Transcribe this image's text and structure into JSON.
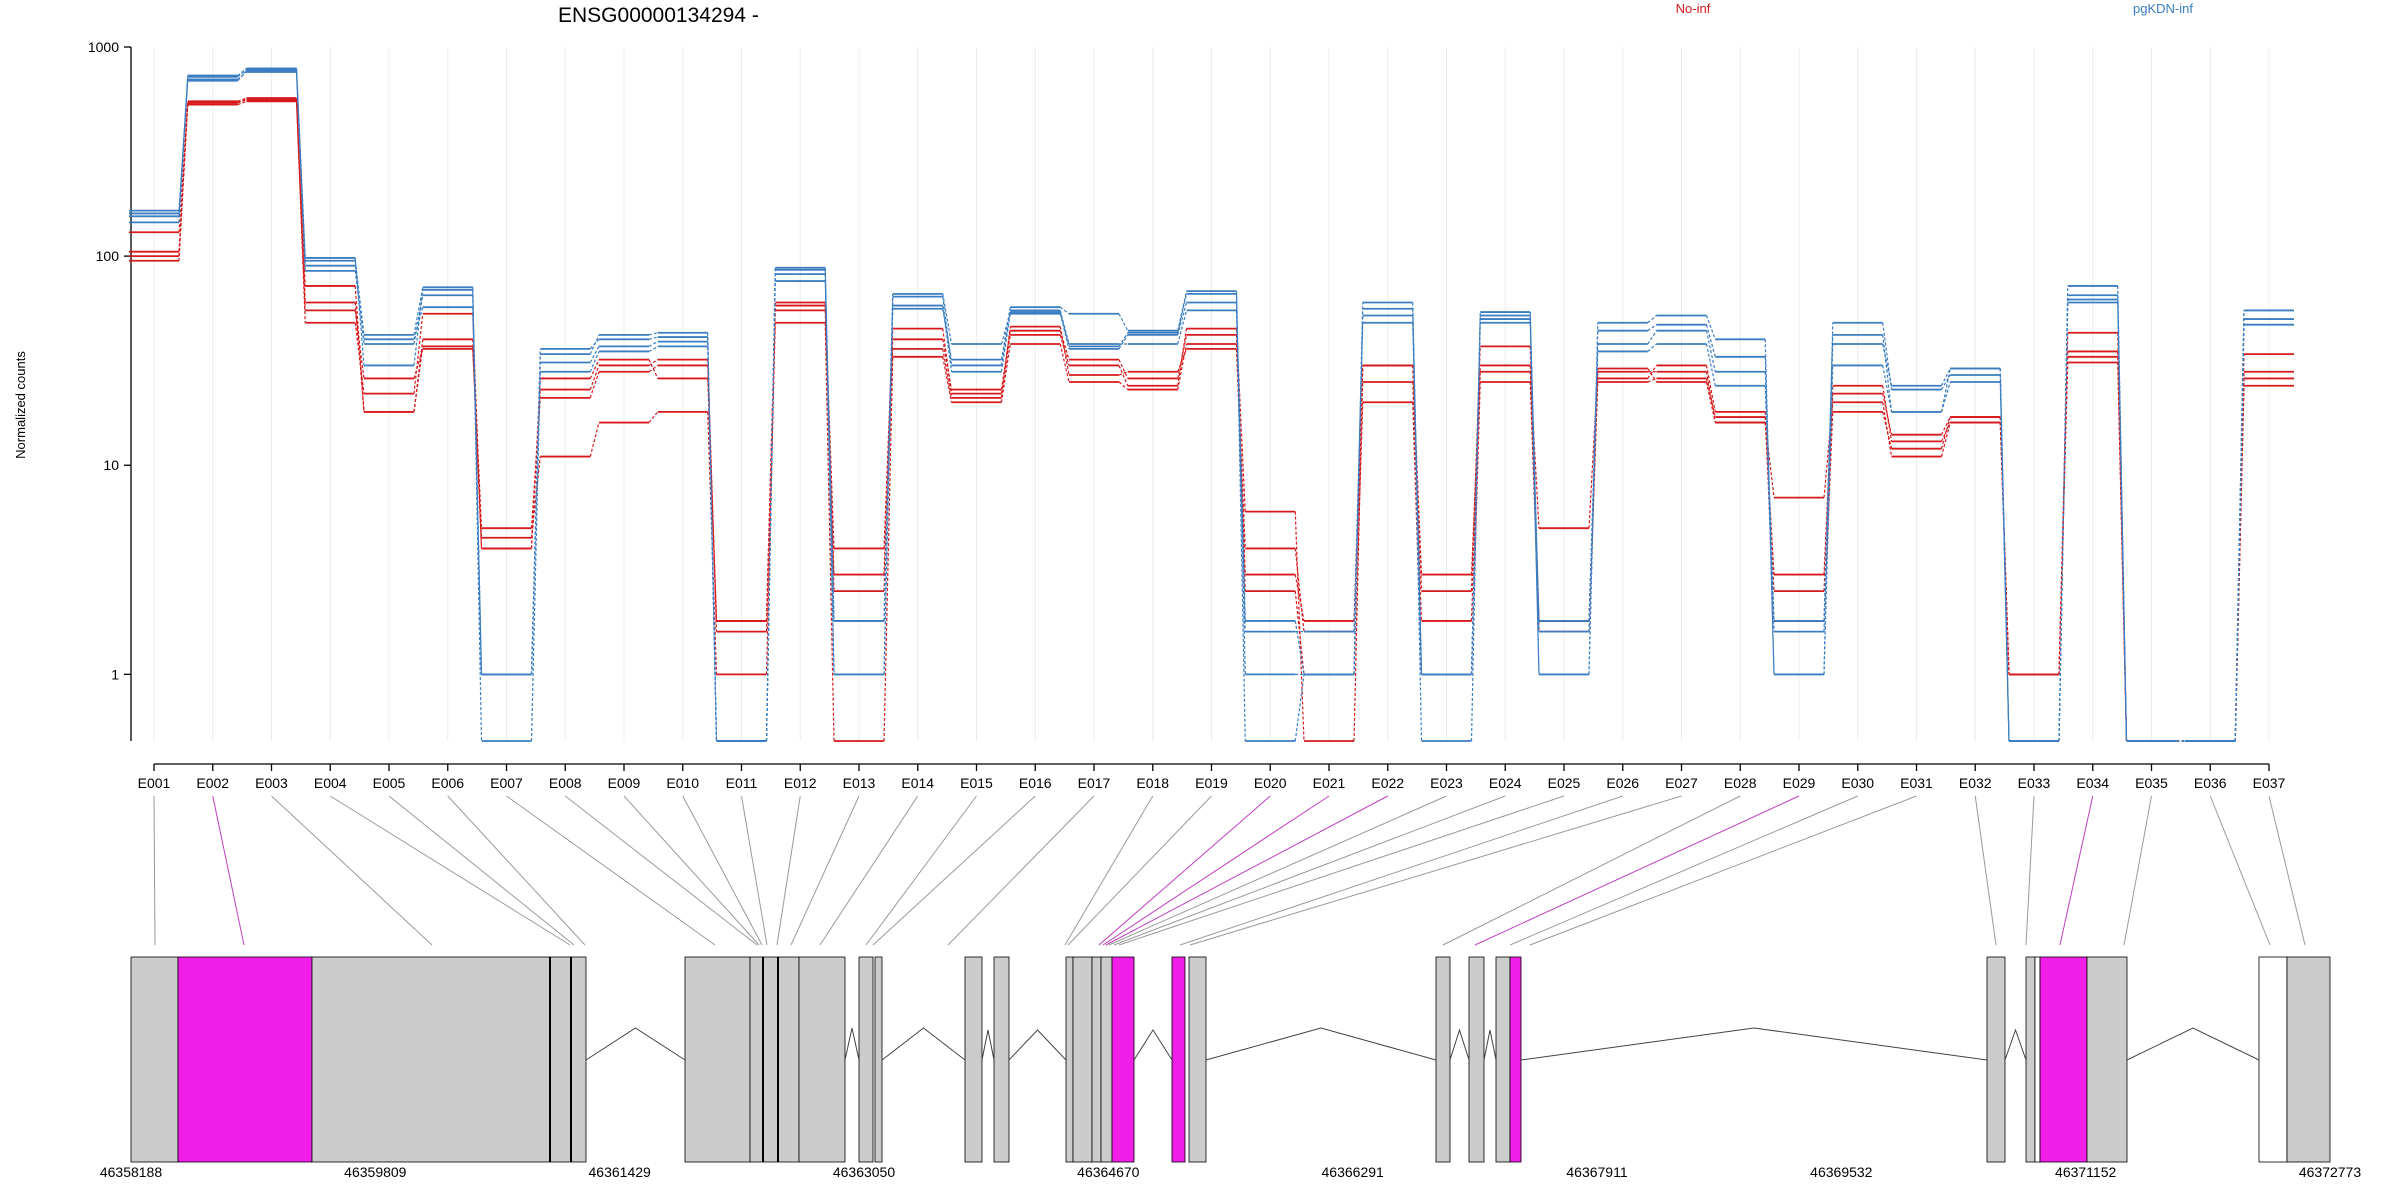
{
  "chart_data": {
    "type": "line",
    "title": "ENSG00000134294 -",
    "xlabel": "",
    "ylabel": "Normalized counts",
    "y_scale": "log",
    "ylim": [
      0.48,
      1000
    ],
    "y_ticks": [
      "1",
      "10",
      "100",
      "1000"
    ],
    "y_tick_values": [
      1,
      10,
      100,
      1000
    ],
    "grid": "vertical",
    "legend": [
      {
        "name": "No-inf",
        "color": "#d7191c"
      },
      {
        "name": "pgKDN-inf",
        "color": "#3a7dc1"
      }
    ],
    "categories": [
      "E001",
      "E002",
      "E003",
      "E004",
      "E005",
      "E006",
      "E007",
      "E008",
      "E009",
      "E010",
      "E011",
      "E012",
      "E013",
      "E014",
      "E015",
      "E016",
      "E017",
      "E018",
      "E019",
      "E020",
      "E021",
      "E022",
      "E023",
      "E024",
      "E025",
      "E026",
      "E027",
      "E028",
      "E029",
      "E030",
      "E031",
      "E032",
      "E033",
      "E034",
      "E035",
      "E036",
      "E037"
    ],
    "series": [
      {
        "group": "No-inf",
        "color": "#d7191c",
        "values": [
          105,
          540,
          560,
          72,
          18,
          40,
          5,
          21,
          28,
          30,
          1.8,
          58,
          4,
          45,
          22,
          42,
          30,
          24,
          45,
          6,
          0.48,
          30,
          3,
          28,
          5,
          28,
          28,
          16,
          7,
          20,
          11,
          16,
          1,
          35,
          0.48,
          0.48,
          34
        ]
      },
      {
        "group": "No-inf",
        "color": "#d7191c",
        "values": [
          95,
          550,
          570,
          60,
          18,
          37,
          4,
          23,
          30,
          32,
          1.6,
          55,
          3,
          40,
          23,
          44,
          32,
          26,
          42,
          3,
          1.8,
          25,
          1.8,
          30,
          1.8,
          26,
          30,
          18,
          1.8,
          18,
          12,
          17,
          1,
          33,
          0.48,
          0.48,
          28
        ]
      },
      {
        "group": "No-inf",
        "color": "#d7191c",
        "values": [
          130,
          545,
          565,
          55,
          26,
          36,
          4.5,
          11,
          16,
          18,
          1,
          48,
          0.48,
          33,
          20,
          38,
          25,
          23,
          38,
          2.5,
          1,
          20,
          1,
          25,
          1.6,
          25,
          26,
          17,
          2.5,
          22,
          14,
          17,
          1,
          31,
          0.48,
          0.48,
          24
        ]
      },
      {
        "group": "No-inf",
        "color": "#d7191c",
        "values": [
          100,
          530,
          550,
          48,
          22,
          53,
          4,
          26,
          32,
          26,
          1.8,
          60,
          2.5,
          36,
          21,
          46,
          27,
          28,
          36,
          4,
          1.6,
          30,
          2.5,
          37,
          1.8,
          29,
          25,
          16,
          3,
          24,
          13,
          16,
          1,
          43,
          0.48,
          0.48,
          26
        ]
      },
      {
        "group": "pgKDN-inf",
        "color": "#3a7dc1",
        "values": [
          155,
          700,
          760,
          85,
          40,
          57,
          1,
          31,
          37,
          39,
          0.48,
          76,
          1.8,
          58,
          28,
          53,
          36,
          42,
          60,
          1.8,
          1,
          52,
          1,
          48,
          1.8,
          38,
          44,
          28,
          1.8,
          42,
          18,
          25,
          0.48,
          65,
          0.48,
          0.48,
          50
        ]
      },
      {
        "group": "pgKDN-inf",
        "color": "#3a7dc1",
        "values": [
          165,
          720,
          780,
          95,
          42,
          71,
          0.48,
          28,
          35,
          37,
          0.48,
          88,
          1,
          64,
          30,
          55,
          38,
          38,
          55,
          1.6,
          1.6,
          48,
          1,
          52,
          1.6,
          35,
          38,
          24,
          1.6,
          38,
          24,
          29,
          0.48,
          62,
          0.48,
          0.48,
          55
        ]
      },
      {
        "group": "pgKDN-inf",
        "color": "#3a7dc1",
        "values": [
          145,
          730,
          790,
          98,
          30,
          69,
          1,
          34,
          42,
          43,
          0.48,
          82,
          1,
          56,
          32,
          57,
          53,
          44,
          68,
          1,
          1,
          56,
          1,
          50,
          1,
          48,
          52,
          40,
          1,
          30,
          18,
          29,
          0.48,
          72,
          0.48,
          0.48,
          47
        ]
      },
      {
        "group": "pgKDN-inf",
        "color": "#3a7dc1",
        "values": [
          160,
          690,
          770,
          90,
          38,
          65,
          1,
          36,
          40,
          41,
          0.48,
          86,
          1.8,
          66,
          38,
          54,
          37,
          43,
          66,
          0.48,
          1,
          60,
          0.48,
          54,
          1,
          44,
          47,
          33,
          1,
          48,
          23,
          27,
          0.48,
          60,
          0.48,
          0.48,
          55
        ]
      }
    ],
    "genome_axis_ticks": [
      "46358188",
      "46359809",
      "46361429",
      "46363050",
      "46364670",
      "46366291",
      "46367911",
      "46369532",
      "46371152",
      "46372773"
    ],
    "highlighted_exons": [
      "E002",
      "E020",
      "E021",
      "E022",
      "E029",
      "E034"
    ]
  }
}
